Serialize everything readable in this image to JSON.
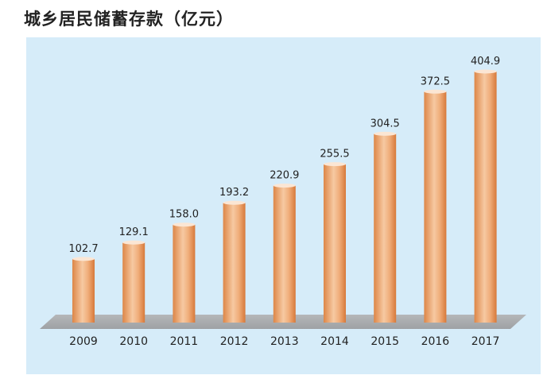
{
  "title": "城乡居民储蓄存款（亿元）",
  "colors": {
    "background_panel": "#d6ecf9",
    "floor": "#a9acae",
    "bar_mid": "#f3b88a",
    "bar_dark": "#dd8647",
    "bar_top": "#fbe6d4"
  },
  "chart_data": {
    "type": "bar",
    "title": "城乡居民储蓄存款（亿元）",
    "categories": [
      "2009",
      "2010",
      "2011",
      "2012",
      "2013",
      "2014",
      "2015",
      "2016",
      "2017"
    ],
    "values": [
      102.7,
      129.1,
      158.0,
      193.2,
      220.9,
      255.5,
      304.5,
      372.5,
      404.9
    ],
    "value_labels": [
      "102.7",
      "129.1",
      "158.0",
      "193.2",
      "220.9",
      "255.5",
      "304.5",
      "372.5",
      "404.9"
    ],
    "xlabel": "",
    "ylabel": "",
    "ylim": [
      0,
      404.9
    ],
    "grid": false,
    "legend": "none"
  }
}
